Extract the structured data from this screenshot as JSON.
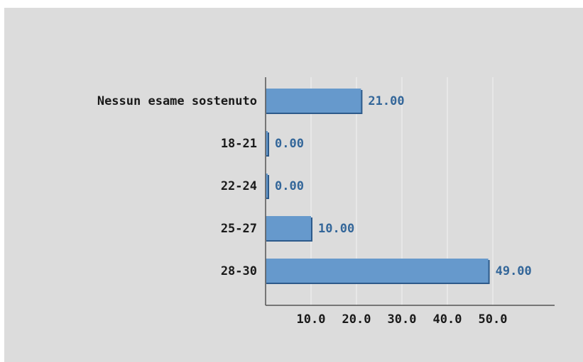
{
  "chart_data": {
    "type": "bar",
    "orientation": "horizontal",
    "categories": [
      "Nessun esame sostenuto",
      "18-21",
      "22-24",
      "25-27",
      "28-30"
    ],
    "values": [
      21.0,
      0.0,
      0.0,
      10.0,
      49.0
    ],
    "value_labels": [
      "21.00",
      "0.00",
      "0.00",
      "10.00",
      "49.00"
    ],
    "x_ticks": [
      10,
      20,
      30,
      40,
      50
    ],
    "x_tick_labels": [
      "10.0",
      "20.0",
      "30.0",
      "40.0",
      "50.0"
    ],
    "xlim": [
      0,
      60
    ],
    "grid": "vertical",
    "legend": "none"
  },
  "colors": {
    "background": "#dcdcdc",
    "bar_fill": "#6699cc",
    "bar_shadow": "#2d5a8a",
    "grid": "#f2f2f2",
    "axis": "#555555",
    "value_text": "#336699"
  }
}
